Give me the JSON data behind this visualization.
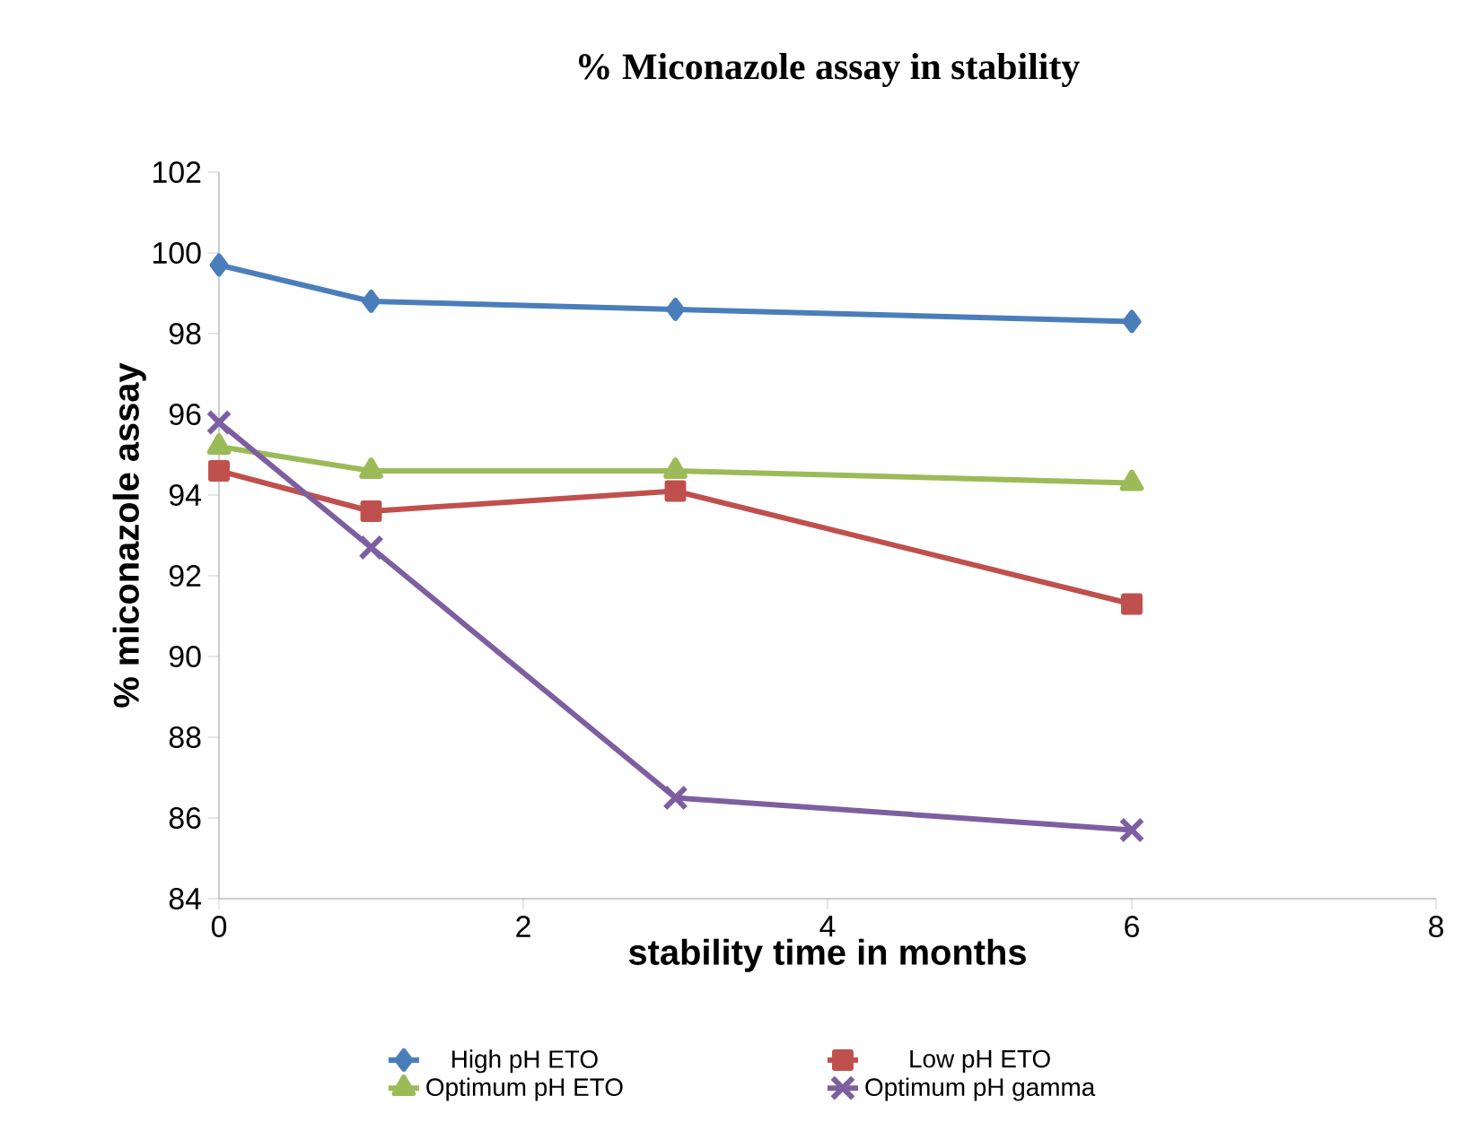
{
  "chart_data": {
    "type": "line",
    "title": "% Miconazole assay in stability",
    "xlabel": "stability time in months",
    "ylabel": "% miconazole assay",
    "x": [
      0,
      1,
      3,
      6
    ],
    "series": [
      {
        "name": "High pH ETO",
        "color": "#4a7ebb",
        "marker": "diamond",
        "values": [
          99.7,
          98.8,
          98.6,
          98.3
        ]
      },
      {
        "name": "Low pH ETO",
        "color": "#c0504d",
        "marker": "square",
        "values": [
          94.6,
          93.6,
          94.1,
          91.3
        ]
      },
      {
        "name": "Optimum pH ETO",
        "color": "#9bbb59",
        "marker": "triangle",
        "values": [
          95.2,
          94.6,
          94.6,
          94.3
        ]
      },
      {
        "name": "Optimum pH gamma",
        "color": "#7d5fa0",
        "marker": "cross",
        "values": [
          95.8,
          92.7,
          86.5,
          85.7
        ]
      }
    ],
    "xlim": [
      0,
      8
    ],
    "xticks": [
      0,
      2,
      4,
      6,
      8
    ],
    "ylim": [
      84,
      102
    ],
    "yticks": [
      84,
      86,
      88,
      90,
      92,
      94,
      96,
      98,
      100,
      102
    ],
    "grid": false,
    "legend": "bottom",
    "line_style": "solid"
  }
}
